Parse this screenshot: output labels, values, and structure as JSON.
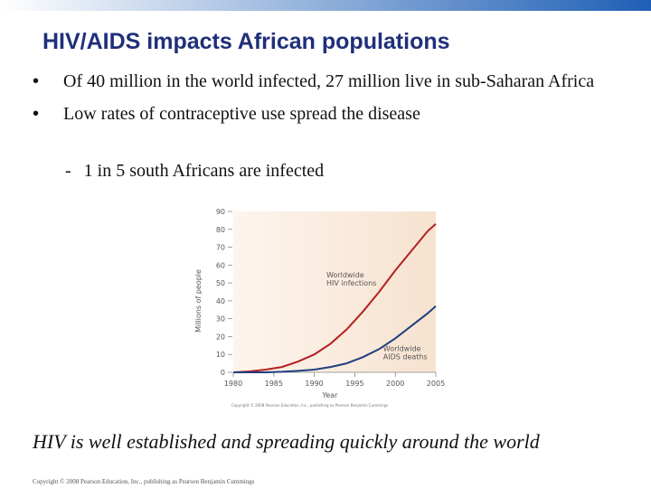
{
  "slide": {
    "title": "HIV/AIDS impacts African populations",
    "bullets": [
      "Of 40 million in the world infected, 27 million live in sub-Saharan Africa",
      "Low rates of contraceptive use spread the disease"
    ],
    "sub_bullet": "1 in 5 south Africans are infected",
    "caption": "HIV is well established and spreading quickly around the world",
    "copyright": "Copyright © 2008 Pearson Education, Inc., publishing as Pearson Benjamin Cummings",
    "colors": {
      "title": "#1f2f7a",
      "top_bar": "#1f5fb5"
    }
  },
  "chart_data": {
    "type": "line",
    "xlabel": "Year",
    "ylabel": "Millions of people",
    "xlim": [
      1980,
      2005
    ],
    "ylim": [
      0,
      90
    ],
    "xticks": [
      1980,
      1985,
      1990,
      1995,
      2000,
      2005
    ],
    "yticks": [
      0,
      10,
      20,
      30,
      40,
      50,
      60,
      70,
      80,
      90
    ],
    "credit": "Copyright © 2008 Pearson Education, Inc., publishing as Pearson Benjamin Cummings",
    "series": [
      {
        "name": "Worldwide HIV infections",
        "label_lines": [
          "Worldwide",
          "HIV infections"
        ],
        "label_anchor": [
          1991.5,
          53
        ],
        "color": "#b52020",
        "x": [
          1980,
          1982,
          1984,
          1986,
          1988,
          1990,
          1992,
          1994,
          1996,
          1998,
          2000,
          2002,
          2004,
          2005
        ],
        "y": [
          0,
          0.5,
          1.5,
          3,
          6,
          10,
          16,
          24,
          34,
          45,
          57,
          68,
          79,
          83
        ]
      },
      {
        "name": "Worldwide AIDS deaths",
        "label_lines": [
          "Worldwide",
          "AIDS deaths"
        ],
        "label_anchor": [
          1998.5,
          12
        ],
        "color": "#1f3f7f",
        "x": [
          1980,
          1984,
          1986,
          1988,
          1990,
          1992,
          1994,
          1996,
          1998,
          2000,
          2002,
          2004,
          2005
        ],
        "y": [
          0,
          0,
          0.3,
          0.8,
          1.5,
          3,
          5,
          8.5,
          13,
          19,
          26,
          33,
          37
        ]
      }
    ]
  }
}
